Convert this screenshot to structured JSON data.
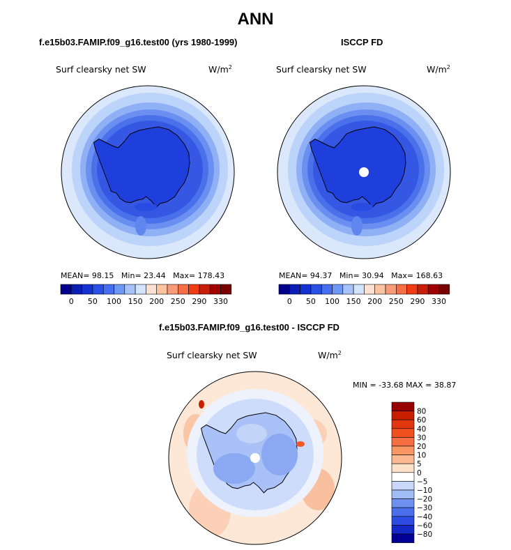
{
  "main_title": "ANN",
  "panels": [
    {
      "title": "f.e15b03.FAMIP.f09_g16.test00 (yrs 1980-1999)",
      "variable": "Surf clearsky net SW",
      "units": "W/m",
      "units_exp": "2",
      "mean_label": "MEAN=",
      "mean": "98.15",
      "min_label": "Min=",
      "min": "23.44",
      "max_label": "Max=",
      "max": "178.43"
    },
    {
      "title": "ISCCP FD",
      "variable": "Surf clearsky net SW",
      "units": "W/m",
      "units_exp": "2",
      "mean_label": "MEAN=",
      "mean": "94.37",
      "min_label": "Min=",
      "min": "30.94",
      "max_label": "Max=",
      "max": "168.63"
    },
    {
      "title": "f.e15b03.FAMIP.f09_g16.test00 - ISCCP FD",
      "variable": "Surf clearsky net SW",
      "units": "W/m",
      "units_exp": "2",
      "minmax_text": "MIN = -33.68 MAX =  38.87"
    }
  ],
  "chart_data": [
    {
      "type": "heatmap",
      "projection": "south-polar-stereographic",
      "title": "f.e15b03.FAMIP.f09_g16.test00 (yrs 1980-1999)",
      "variable": "Surf clearsky net SW",
      "units": "W/m2",
      "stats": {
        "mean": 98.15,
        "min": 23.44,
        "max": 178.43
      },
      "colorbar": {
        "orientation": "horizontal",
        "tick_labels": [
          "0",
          "50",
          "100",
          "150",
          "200",
          "250",
          "290",
          "330"
        ],
        "colors": [
          "#00008c",
          "#0a1eb4",
          "#1432d2",
          "#2850e6",
          "#466ef0",
          "#6e96f5",
          "#a5c3fa",
          "#d2e3fc",
          "#fde1d2",
          "#fcc3a0",
          "#f89b78",
          "#f56e46",
          "#f03c14",
          "#c81e0a",
          "#a00000",
          "#780000"
        ]
      }
    },
    {
      "type": "heatmap",
      "projection": "south-polar-stereographic",
      "title": "ISCCP FD",
      "variable": "Surf clearsky net SW",
      "units": "W/m2",
      "stats": {
        "mean": 94.37,
        "min": 30.94,
        "max": 168.63
      },
      "colorbar": {
        "orientation": "horizontal",
        "tick_labels": [
          "0",
          "50",
          "100",
          "150",
          "200",
          "250",
          "290",
          "330"
        ],
        "colors": [
          "#00008c",
          "#0a1eb4",
          "#1432d2",
          "#2850e6",
          "#466ef0",
          "#6e96f5",
          "#a5c3fa",
          "#d2e3fc",
          "#fde1d2",
          "#fcc3a0",
          "#f89b78",
          "#f56e46",
          "#f03c14",
          "#c81e0a",
          "#a00000",
          "#780000"
        ]
      }
    },
    {
      "type": "heatmap",
      "projection": "south-polar-stereographic",
      "title": "f.e15b03.FAMIP.f09_g16.test00 - ISCCP FD",
      "variable": "Surf clearsky net SW",
      "units": "W/m2",
      "stats": {
        "min": -33.68,
        "max": 38.87
      },
      "colorbar": {
        "orientation": "vertical",
        "tick_labels": [
          "80",
          "60",
          "40",
          "30",
          "20",
          "10",
          "5",
          "0",
          "−5",
          "−10",
          "−20",
          "−30",
          "−40",
          "−60",
          "−80"
        ],
        "colors": [
          "#960000",
          "#c81e00",
          "#e1370f",
          "#f0501e",
          "#f56e41",
          "#f89664",
          "#fab991",
          "#fde1c8",
          "#ffffff",
          "#c8d7fa",
          "#a0bef5",
          "#6e91f0",
          "#4b6eeb",
          "#2d4be1",
          "#1428c8",
          "#000096"
        ]
      }
    }
  ]
}
